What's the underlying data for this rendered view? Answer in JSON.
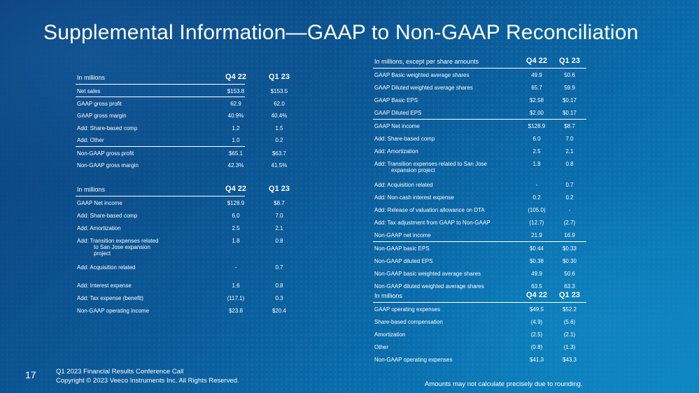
{
  "title": "Supplemental Information—GAAP to Non-GAAP Reconciliation",
  "table_gross": {
    "header": {
      "label": "In millions",
      "col1": "Q4 22",
      "col2": "Q1 23"
    },
    "rows": [
      {
        "label": "Net sales",
        "v1": "$153.8",
        "v2": "$153.5",
        "sep": true
      },
      {
        "label": "GAAP gross profit",
        "v1": "62.9",
        "v2": "62.0"
      },
      {
        "label": "GAAP gross margin",
        "v1": "40.9%",
        "v2": "40.4%"
      },
      {
        "label": "Add: Share-based comp",
        "v1": "1.2",
        "v2": "1.5"
      },
      {
        "label": "Add: Other",
        "v1": "1.0",
        "v2": "0.2",
        "sep": true
      },
      {
        "label": "Non-GAAP gross profit",
        "v1": "$65.1",
        "v2": "$63.7"
      },
      {
        "label": "Non-GAAP gross margin",
        "v1": "42.3%",
        "v2": "41.5%"
      }
    ]
  },
  "table_operating": {
    "header": {
      "label": "In millions",
      "col1": "Q4 22",
      "col2": "Q1 23"
    },
    "rows": [
      {
        "label": "GAAP Net income",
        "v1": "$128.9",
        "v2": "$8.7"
      },
      {
        "label": "Add: Share-based comp",
        "v1": "6.0",
        "v2": "7.0"
      },
      {
        "label": "Add: Amortization",
        "v1": "2.5",
        "v2": "2.1"
      },
      {
        "label": "Add: Transition expenses related",
        "label2": "to San Jose expansion",
        "label3": "project",
        "v1": "1.8",
        "v2": "0.8"
      },
      {
        "label": "Add: Acquisition related",
        "v1": "-",
        "v2": "0.7"
      },
      {
        "label": "Add: Interest expense",
        "v1": "1.6",
        "v2": "0.8"
      },
      {
        "label": "Add: Tax expense (benefit)",
        "v1": "(117.1)",
        "v2": "0.3"
      },
      {
        "label": "Non-GAAP operating income",
        "v1": "$23.8",
        "v2": "$20.4"
      }
    ]
  },
  "table_eps": {
    "header": {
      "label": "In millions, except per share amounts",
      "col1": "Q4 22",
      "col2": "Q1 23"
    },
    "rows": [
      {
        "label": "GAAP Basic weighted average shares",
        "v1": "49.9",
        "v2": "50.6"
      },
      {
        "label": "GAAP Diluted weighted average shares",
        "v1": "65.7",
        "v2": "59.9"
      },
      {
        "label": "GAAP Basic EPS",
        "v1": "$2.58",
        "v2": "$0.17"
      },
      {
        "label": "GAAP Diluted EPS",
        "v1": "$2.00",
        "v2": "$0.17",
        "sep": true
      },
      {
        "label": "GAAP Net income",
        "v1": "$128.9",
        "v2": "$8.7"
      },
      {
        "label": "Add: Share-based comp",
        "v1": "6.0",
        "v2": "7.0"
      },
      {
        "label": "Add: Amortization",
        "v1": "2.5",
        "v2": "2.1"
      },
      {
        "label": "Add: Transition expenses related to San Jose",
        "label2": "expansion project",
        "v1": "1.8",
        "v2": "0.8"
      },
      {
        "label": "Add: Acquisition related",
        "v1": "-",
        "v2": "0.7"
      },
      {
        "label": "Add: Non-cash interest expense",
        "v1": "0.2",
        "v2": "0.2"
      },
      {
        "label": "Add: Release of valuation allowance on DTA",
        "v1": "(105.0)",
        "v2": "-"
      },
      {
        "label": "Add: Tax adjustment from GAAP to Non-GAAP",
        "v1": "(12.7)",
        "v2": "(2.7)"
      },
      {
        "label": "Non-GAAP net income",
        "v1": "21.9",
        "v2": "16.9",
        "sep": true
      },
      {
        "label": "Non-GAAP basic EPS",
        "v1": "$0.44",
        "v2": "$0.33"
      },
      {
        "label": "Non-GAAP diluted EPS",
        "v1": "$0.38",
        "v2": "$0.30"
      },
      {
        "label": "Non-GAAP basic weighted average shares",
        "v1": "49.9",
        "v2": "50.6"
      },
      {
        "label": "Non-GAAP diluted weighted average shares",
        "v1": "63.5",
        "v2": "63.3"
      }
    ]
  },
  "table_opex": {
    "header": {
      "label": "In millions",
      "col1": "Q4 22",
      "col2": "Q1 23"
    },
    "rows": [
      {
        "label": "GAAP operating expenses",
        "v1": "$49.5",
        "v2": "$52.2"
      },
      {
        "label": "Share-based compensation",
        "v1": "(4.9)",
        "v2": "(5.6)"
      },
      {
        "label": "Amortization",
        "v1": "(2.5)",
        "v2": "(2.1)"
      },
      {
        "label": "Other",
        "v1": "(0.8)",
        "v2": "(1.3)"
      },
      {
        "label": "Non-GAAP operating expenses",
        "v1": "$41.3",
        "v2": "$43.3"
      }
    ]
  },
  "footer": {
    "page_number": "17",
    "line1": "Q1 2023 Financial Results Conference Call",
    "line2": "Copyright © 2023 Veeco Instruments Inc. All Rights Reserved."
  },
  "footnote": "Amounts may not calculate precisely due to rounding."
}
